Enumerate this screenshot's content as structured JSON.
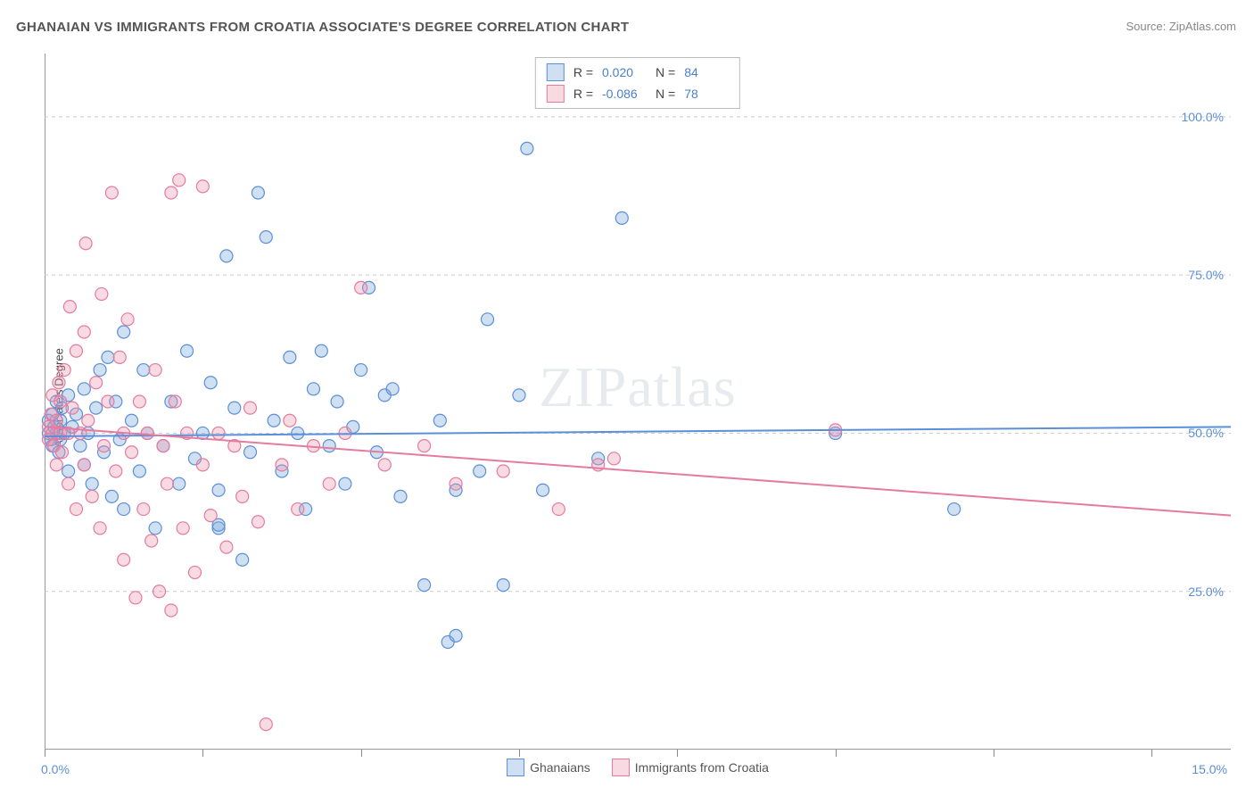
{
  "title": "GHANAIAN VS IMMIGRANTS FROM CROATIA ASSOCIATE'S DEGREE CORRELATION CHART",
  "source": "Source: ZipAtlas.com",
  "ylabel": "Associate's Degree",
  "watermark": "ZIPatlas",
  "chart": {
    "type": "scatter",
    "xlim": [
      0,
      15
    ],
    "ylim": [
      0,
      110
    ],
    "xtick_positions": [
      0,
      2,
      4,
      6,
      8,
      10,
      12,
      14
    ],
    "ytick_positions": [
      25,
      50,
      75,
      100
    ],
    "ytick_labels": [
      "25.0%",
      "50.0%",
      "75.0%",
      "100.0%"
    ],
    "xlim_labels": {
      "min": "0.0%",
      "max": "15.0%"
    },
    "background_color": "#ffffff",
    "grid_color": "#cccccc",
    "axis_color": "#999999",
    "marker_radius": 7,
    "marker_stroke_width": 1.2,
    "line_width": 2
  },
  "series": [
    {
      "name": "Ghanaians",
      "fill": "rgba(120,165,220,0.35)",
      "stroke": "#5b8fd8",
      "R": "0.020",
      "N": "84",
      "trend": {
        "y_at_xmin": 49.5,
        "y_at_xmax": 51.0
      },
      "points": [
        [
          0.05,
          50
        ],
        [
          0.05,
          52
        ],
        [
          0.08,
          49
        ],
        [
          0.1,
          53
        ],
        [
          0.1,
          48
        ],
        [
          0.12,
          51
        ],
        [
          0.15,
          50
        ],
        [
          0.15,
          55
        ],
        [
          0.18,
          47
        ],
        [
          0.2,
          52
        ],
        [
          0.2,
          49
        ],
        [
          0.22,
          54
        ],
        [
          0.25,
          50
        ],
        [
          0.3,
          56
        ],
        [
          0.3,
          44
        ],
        [
          0.35,
          51
        ],
        [
          0.4,
          53
        ],
        [
          0.45,
          48
        ],
        [
          0.5,
          57
        ],
        [
          0.5,
          45
        ],
        [
          0.55,
          50
        ],
        [
          0.6,
          42
        ],
        [
          0.65,
          54
        ],
        [
          0.7,
          60
        ],
        [
          0.75,
          47
        ],
        [
          0.8,
          62
        ],
        [
          0.85,
          40
        ],
        [
          0.9,
          55
        ],
        [
          0.95,
          49
        ],
        [
          1.0,
          66
        ],
        [
          1.0,
          38
        ],
        [
          1.1,
          52
        ],
        [
          1.2,
          44
        ],
        [
          1.25,
          60
        ],
        [
          1.3,
          50
        ],
        [
          1.4,
          35
        ],
        [
          1.5,
          48
        ],
        [
          1.6,
          55
        ],
        [
          1.7,
          42
        ],
        [
          1.8,
          63
        ],
        [
          1.9,
          46
        ],
        [
          2.0,
          50
        ],
        [
          2.1,
          58
        ],
        [
          2.2,
          41
        ],
        [
          2.2,
          35
        ],
        [
          2.2,
          35.5
        ],
        [
          2.3,
          78
        ],
        [
          2.4,
          54
        ],
        [
          2.5,
          30
        ],
        [
          2.6,
          47
        ],
        [
          2.7,
          88
        ],
        [
          2.8,
          81
        ],
        [
          2.9,
          52
        ],
        [
          3.0,
          44
        ],
        [
          3.1,
          62
        ],
        [
          3.2,
          50
        ],
        [
          3.3,
          38
        ],
        [
          3.4,
          57
        ],
        [
          3.5,
          63
        ],
        [
          3.6,
          48
        ],
        [
          3.7,
          55
        ],
        [
          3.8,
          42
        ],
        [
          3.9,
          51
        ],
        [
          4.0,
          60
        ],
        [
          4.1,
          73
        ],
        [
          4.2,
          47
        ],
        [
          4.3,
          56
        ],
        [
          4.4,
          57
        ],
        [
          4.5,
          40
        ],
        [
          4.8,
          26
        ],
        [
          5.0,
          52
        ],
        [
          5.1,
          17
        ],
        [
          5.2,
          18
        ],
        [
          5.2,
          41
        ],
        [
          5.5,
          44
        ],
        [
          5.6,
          68
        ],
        [
          5.8,
          26
        ],
        [
          6.0,
          56
        ],
        [
          6.1,
          95
        ],
        [
          6.3,
          41
        ],
        [
          7.0,
          46
        ],
        [
          7.3,
          84
        ],
        [
          10.0,
          50
        ],
        [
          11.5,
          38
        ]
      ]
    },
    {
      "name": "Immigrants from Croatia",
      "fill": "rgba(235,150,175,0.35)",
      "stroke": "#e57ba0",
      "R": "-0.086",
      "N": "78",
      "trend": {
        "y_at_xmin": 51.0,
        "y_at_xmax": 37.0
      },
      "points": [
        [
          0.05,
          51
        ],
        [
          0.05,
          49
        ],
        [
          0.08,
          53
        ],
        [
          0.1,
          50
        ],
        [
          0.1,
          56
        ],
        [
          0.12,
          48
        ],
        [
          0.15,
          52
        ],
        [
          0.15,
          45
        ],
        [
          0.18,
          58
        ],
        [
          0.2,
          50
        ],
        [
          0.2,
          55
        ],
        [
          0.22,
          47
        ],
        [
          0.25,
          60
        ],
        [
          0.3,
          50
        ],
        [
          0.3,
          42
        ],
        [
          0.32,
          70
        ],
        [
          0.35,
          54
        ],
        [
          0.4,
          63
        ],
        [
          0.4,
          38
        ],
        [
          0.45,
          50
        ],
        [
          0.5,
          66
        ],
        [
          0.5,
          45
        ],
        [
          0.52,
          80
        ],
        [
          0.55,
          52
        ],
        [
          0.6,
          40
        ],
        [
          0.65,
          58
        ],
        [
          0.7,
          35
        ],
        [
          0.72,
          72
        ],
        [
          0.75,
          48
        ],
        [
          0.8,
          55
        ],
        [
          0.85,
          88
        ],
        [
          0.9,
          44
        ],
        [
          0.95,
          62
        ],
        [
          1.0,
          50
        ],
        [
          1.0,
          30
        ],
        [
          1.05,
          68
        ],
        [
          1.1,
          47
        ],
        [
          1.15,
          24
        ],
        [
          1.2,
          55
        ],
        [
          1.25,
          38
        ],
        [
          1.3,
          50
        ],
        [
          1.35,
          33
        ],
        [
          1.4,
          60
        ],
        [
          1.45,
          25
        ],
        [
          1.5,
          48
        ],
        [
          1.55,
          42
        ],
        [
          1.6,
          22
        ],
        [
          1.6,
          88
        ],
        [
          1.65,
          55
        ],
        [
          1.7,
          90
        ],
        [
          1.75,
          35
        ],
        [
          1.8,
          50
        ],
        [
          1.9,
          28
        ],
        [
          2.0,
          45
        ],
        [
          2.0,
          89
        ],
        [
          2.1,
          37
        ],
        [
          2.2,
          50
        ],
        [
          2.3,
          32
        ],
        [
          2.4,
          48
        ],
        [
          2.5,
          40
        ],
        [
          2.6,
          54
        ],
        [
          2.7,
          36
        ],
        [
          2.8,
          4
        ],
        [
          3.0,
          45
        ],
        [
          3.1,
          52
        ],
        [
          3.2,
          38
        ],
        [
          3.4,
          48
        ],
        [
          3.6,
          42
        ],
        [
          3.8,
          50
        ],
        [
          4.0,
          73
        ],
        [
          4.3,
          45
        ],
        [
          4.8,
          48
        ],
        [
          5.2,
          42
        ],
        [
          5.8,
          44
        ],
        [
          6.5,
          38
        ],
        [
          7.0,
          45
        ],
        [
          7.2,
          46
        ],
        [
          10.0,
          50.5
        ]
      ]
    }
  ],
  "legend_top": {
    "rows": [
      {
        "swatch_fill": "rgba(120,165,220,0.35)",
        "swatch_stroke": "#5b8fd8",
        "R": "0.020",
        "N": "84"
      },
      {
        "swatch_fill": "rgba(235,150,175,0.35)",
        "swatch_stroke": "#e57ba0",
        "R": "-0.086",
        "N": "78"
      }
    ]
  },
  "legend_bottom": {
    "items": [
      {
        "swatch_fill": "rgba(120,165,220,0.35)",
        "swatch_stroke": "#5b8fd8",
        "label": "Ghanaians"
      },
      {
        "swatch_fill": "rgba(235,150,175,0.35)",
        "swatch_stroke": "#e57ba0",
        "label": "Immigrants from Croatia"
      }
    ]
  }
}
